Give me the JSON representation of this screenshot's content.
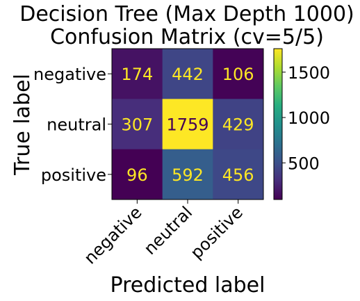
{
  "chart_data": {
    "type": "heatmap",
    "title": [
      "Decision Tree (Max Depth 1000)",
      "Confusion Matrix (cv=5/5)"
    ],
    "xlabel": "Predicted label",
    "ylabel": "True label",
    "x_categories": [
      "negative",
      "neutral",
      "positive"
    ],
    "y_categories": [
      "negative",
      "neutral",
      "positive"
    ],
    "values": [
      [
        174,
        442,
        106
      ],
      [
        307,
        1759,
        429
      ],
      [
        96,
        592,
        456
      ]
    ],
    "colormap": "viridis",
    "value_range": [
      96,
      1759
    ],
    "colorbar_ticks": [
      500,
      1000,
      1500
    ],
    "text_colors": {
      "on_dark": "#fde725",
      "on_light": "#440154"
    },
    "grid": false
  }
}
